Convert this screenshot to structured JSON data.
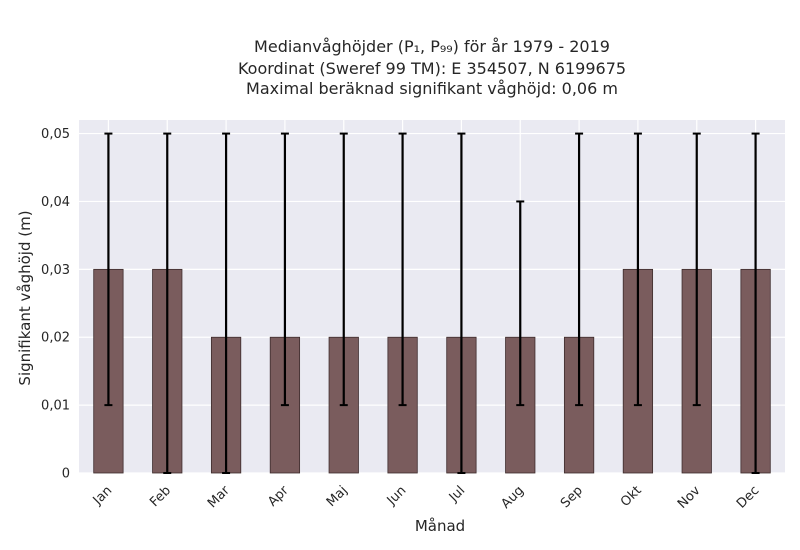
{
  "chart_data": {
    "type": "bar",
    "title": [
      "Medianvåghöjder (P₁, P₉₉) för år 1979 - 2019",
      "Koordinat (Sweref 99 TM): E 354507, N 6199675",
      "Maximal beräknad signifikant våghöjd: 0,06 m"
    ],
    "xlabel": "Månad",
    "ylabel": "Signifikant våghöjd (m)",
    "categories": [
      "Jan",
      "Feb",
      "Mar",
      "Apr",
      "Maj",
      "Jun",
      "Jul",
      "Aug",
      "Sep",
      "Okt",
      "Nov",
      "Dec"
    ],
    "values": [
      0.03,
      0.03,
      0.02,
      0.02,
      0.02,
      0.02,
      0.02,
      0.02,
      0.02,
      0.03,
      0.03,
      0.03
    ],
    "error_low": [
      0.01,
      0.0,
      0.0,
      0.01,
      0.01,
      0.01,
      0.0,
      0.01,
      0.01,
      0.01,
      0.01,
      0.0
    ],
    "error_high": [
      0.05,
      0.05,
      0.05,
      0.05,
      0.05,
      0.05,
      0.05,
      0.04,
      0.05,
      0.05,
      0.05,
      0.05
    ],
    "yticks": [
      0,
      0.01,
      0.02,
      0.03,
      0.04,
      0.05
    ],
    "ytick_labels": [
      "0",
      "0,01",
      "0,02",
      "0,03",
      "0,04",
      "0,05"
    ],
    "ylim": [
      0,
      0.052
    ],
    "grid": true,
    "colors": {
      "bar": "#7a5c5d",
      "bar_edge": "#3d2b2c",
      "error": "#000000",
      "plot_bg": "#eaeaf2",
      "grid": "#ffffff",
      "text": "#262626"
    }
  }
}
